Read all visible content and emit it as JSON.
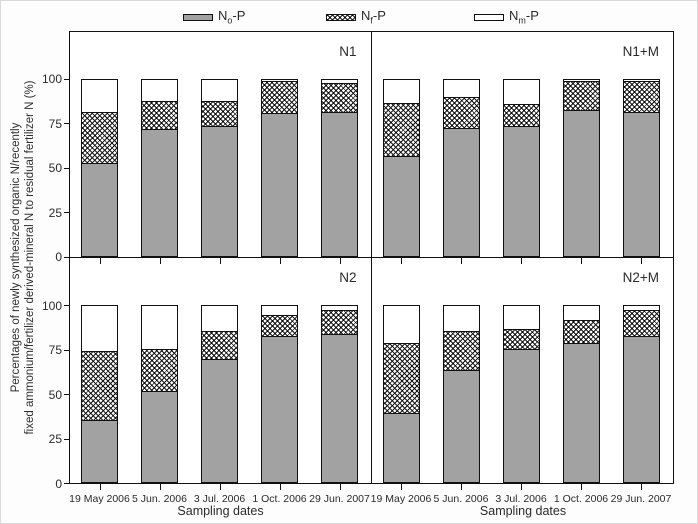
{
  "figure": {
    "y_axis_title_line1": "Percentages of newly synthesized organic N/recently",
    "y_axis_title_line2": "fixed ammonium/fertilizer derived-mineral N to residual fertilizer N (%)"
  },
  "legend": {
    "items": [
      {
        "name": "No-P",
        "prefix": "N",
        "sub": "o",
        "suffix": "-P",
        "swatch": "gray-fill",
        "color": "#a2a2a2"
      },
      {
        "name": "Nf-P",
        "prefix": "N",
        "sub": "f",
        "suffix": "-P",
        "swatch": "crosshatch",
        "color": "#ffffff"
      },
      {
        "name": "Nm-P",
        "prefix": "N",
        "sub": "m",
        "suffix": "-P",
        "swatch": "white-fill",
        "color": "#ffffff"
      }
    ]
  },
  "chart_data": {
    "type": "bar",
    "stacked": true,
    "grid": false,
    "legend_position": "top",
    "xlabel": "Sampling dates",
    "ylabel": "Percentages of newly synthesized organic N/recently fixed ammonium/fertilizer derived-mineral N to residual fertilizer N (%)",
    "categories": [
      "19 May 2006",
      "5 Jun. 2006",
      "3 Jul. 2006",
      "1 Oct. 2006",
      "29 Jun. 2007"
    ],
    "yticks": [
      0,
      25,
      50,
      75,
      100
    ],
    "ylim": [
      0,
      126
    ],
    "series_order": [
      "No-P",
      "Nf-P",
      "Nm-P"
    ],
    "colors": {
      "No-P": "#a2a2a2",
      "Nf-P": "crosshatch-black-on-white",
      "Nm-P": "#ffffff"
    },
    "panels": [
      {
        "label": "N1",
        "series": [
          {
            "name": "No-P",
            "values": [
              53,
              72,
              74,
              81,
              82
            ]
          },
          {
            "name": "Nf-P",
            "values": [
              29,
              16,
              14,
              18,
              16
            ]
          },
          {
            "name": "Nm-P",
            "values": [
              18,
              12,
              12,
              1,
              2
            ]
          }
        ]
      },
      {
        "label": "N1+M",
        "series": [
          {
            "name": "No-P",
            "values": [
              57,
              73,
              74,
              83,
              82
            ]
          },
          {
            "name": "Nf-P",
            "values": [
              30,
              17,
              12,
              16,
              17
            ]
          },
          {
            "name": "Nm-P",
            "values": [
              13,
              10,
              14,
              1,
              1
            ]
          }
        ]
      },
      {
        "label": "N2",
        "series": [
          {
            "name": "No-P",
            "values": [
              36,
              52,
              70,
              83,
              84
            ]
          },
          {
            "name": "Nf-P",
            "values": [
              39,
              24,
              16,
              12,
              14
            ]
          },
          {
            "name": "Nm-P",
            "values": [
              25,
              24,
              14,
              5,
              2
            ]
          }
        ]
      },
      {
        "label": "N2+M",
        "series": [
          {
            "name": "No-P",
            "values": [
              40,
              64,
              76,
              79,
              83
            ]
          },
          {
            "name": "Nf-P",
            "values": [
              39,
              22,
              11,
              13,
              15
            ]
          },
          {
            "name": "Nm-P",
            "values": [
              21,
              14,
              13,
              8,
              2
            ]
          }
        ]
      }
    ]
  }
}
